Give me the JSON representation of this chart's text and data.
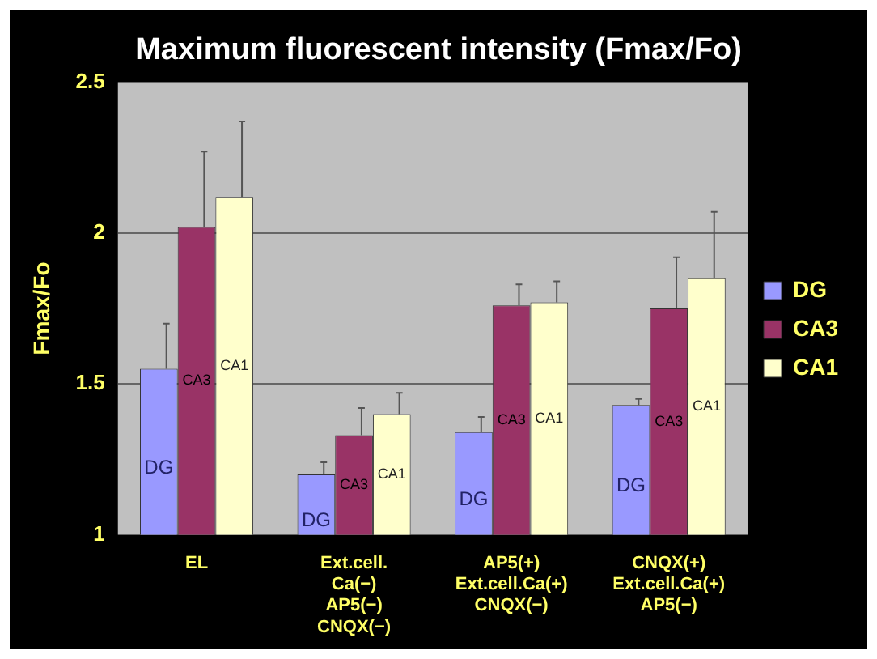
{
  "chart_data": {
    "type": "bar",
    "title": "Maximum fluorescent intensity (Fmax/Fo)",
    "ylabel": "Fmax/Fo",
    "categories": [
      "EL",
      "Ext.cell.\nCa(−)\nAP5(−)\nCNQX(−)",
      "AP5(+)\nExt.cell.Ca(+)\nCNQX(−)",
      "CNQX(+)\nExt.cell.Ca(+)\nAP5(−)"
    ],
    "series": [
      {
        "name": "DG",
        "color": "#9999ff",
        "values": [
          1.55,
          1.2,
          1.34,
          1.43
        ],
        "errors": [
          [
            1.55,
            1.7
          ],
          [
            1.2,
            1.24
          ],
          [
            1.34,
            1.39
          ],
          [
            1.43,
            1.45
          ]
        ]
      },
      {
        "name": "CA3",
        "color": "#993366",
        "values": [
          2.02,
          1.33,
          1.76,
          1.75
        ],
        "errors": [
          [
            2.02,
            2.27
          ],
          [
            1.33,
            1.42
          ],
          [
            1.76,
            1.83
          ],
          [
            1.75,
            1.92
          ]
        ]
      },
      {
        "name": "CA1",
        "color": "#ffffcc",
        "values": [
          2.12,
          1.4,
          1.77,
          1.85
        ],
        "errors": [
          [
            2.12,
            2.37
          ],
          [
            1.4,
            1.47
          ],
          [
            1.77,
            1.84
          ],
          [
            1.85,
            2.07
          ]
        ]
      }
    ],
    "ylim": [
      1,
      2.5
    ],
    "yticks": [
      1,
      1.5,
      2,
      2.5
    ],
    "grid": "y",
    "legend": "right"
  }
}
